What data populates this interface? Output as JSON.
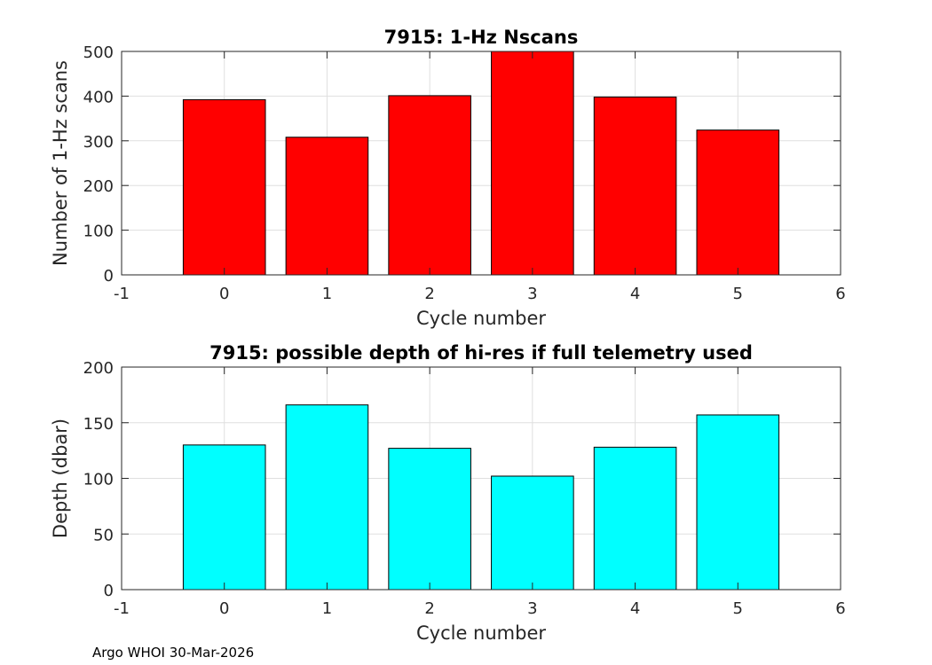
{
  "chart_data": [
    {
      "type": "bar",
      "title": "7915: 1-Hz Nscans",
      "xlabel": "Cycle number",
      "ylabel": "Number of 1-Hz scans",
      "categories": [
        0,
        1,
        2,
        3,
        4,
        5
      ],
      "values": [
        392,
        308,
        401,
        500,
        398,
        324
      ],
      "xlim": [
        -1,
        6
      ],
      "ylim": [
        0,
        500
      ],
      "xticks": [
        -1,
        0,
        1,
        2,
        3,
        4,
        5,
        6
      ],
      "yticks": [
        0,
        100,
        200,
        300,
        400,
        500
      ],
      "bar_color": "#ff0000",
      "grid": true
    },
    {
      "type": "bar",
      "title": "7915: possible depth of hi-res if full telemetry used",
      "xlabel": "Cycle number",
      "ylabel": "Depth (dbar)",
      "categories": [
        0,
        1,
        2,
        3,
        4,
        5
      ],
      "values": [
        130,
        166,
        127,
        102,
        128,
        157
      ],
      "xlim": [
        -1,
        6
      ],
      "ylim": [
        0,
        200
      ],
      "xticks": [
        -1,
        0,
        1,
        2,
        3,
        4,
        5,
        6
      ],
      "yticks": [
        0,
        50,
        100,
        150,
        200
      ],
      "bar_color": "#00ffff",
      "grid": true
    }
  ],
  "footer": "Argo WHOI 30-Mar-2026"
}
